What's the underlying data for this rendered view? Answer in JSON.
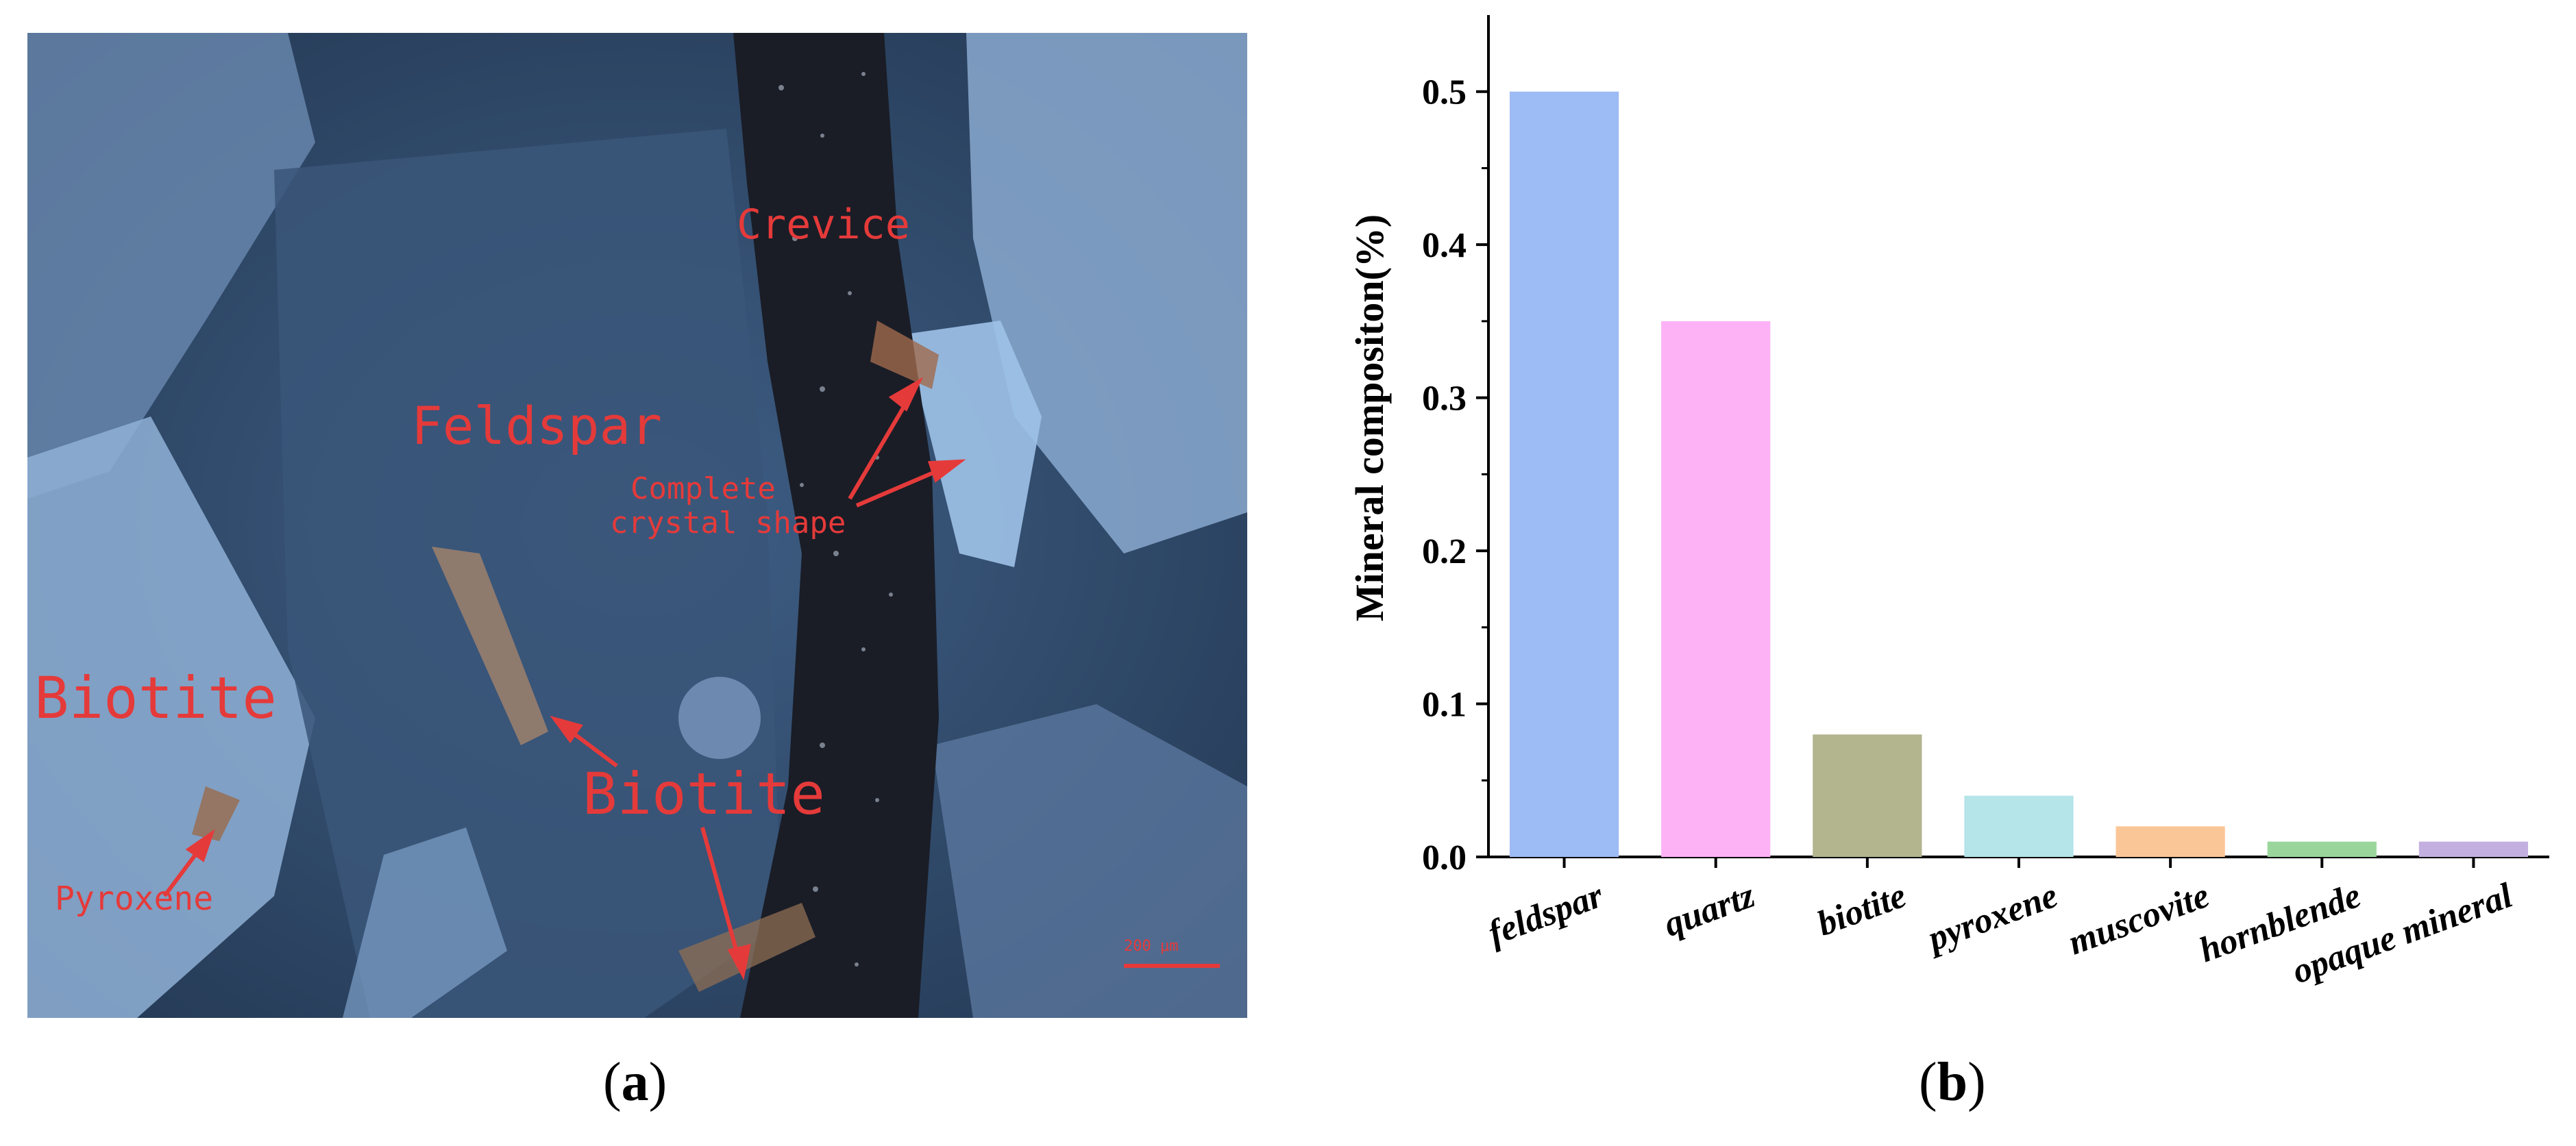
{
  "panel_a": {
    "label_open": "(",
    "label_letter": "a",
    "label_close": ")",
    "annotations": {
      "crevice": "Crevice",
      "feldspar": "Feldspar",
      "complete_line1": "Complete",
      "complete_line2": "crystal shape",
      "biotite_left": "Biotite",
      "biotite_center": "Biotite",
      "pyroxene": "Pyroxene",
      "scale_bar": "200 μm"
    },
    "colors": {
      "annotation": "#e53a3a"
    }
  },
  "panel_b": {
    "label_open": "(",
    "label_letter": "b",
    "label_close": ")"
  },
  "chart_data": {
    "type": "bar",
    "title": "",
    "xlabel": "",
    "ylabel": "Mineral compositon(%)",
    "categories": [
      "feldspar",
      "quartz",
      "biotite",
      "pyroxene",
      "muscovite",
      "hornblende",
      "opaque mineral"
    ],
    "values": [
      0.5,
      0.35,
      0.08,
      0.04,
      0.02,
      0.01,
      0.01
    ],
    "bar_colors": [
      "#9dbbf4",
      "#fdb2f6",
      "#b3b58f",
      "#b5e4e9",
      "#fbc697",
      "#9ad69b",
      "#c3b0e0"
    ],
    "yticks": [
      "0.0",
      "0.1",
      "0.2",
      "0.3",
      "0.4",
      "0.5"
    ],
    "ylim": [
      0,
      0.55
    ],
    "grid": false,
    "legend": "none"
  }
}
